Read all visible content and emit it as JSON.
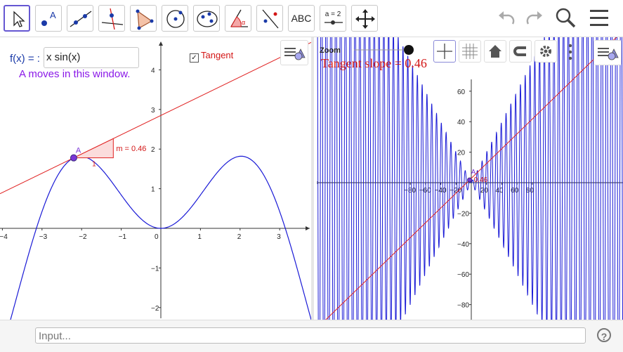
{
  "toolbar": {
    "tools": [
      "move-tool",
      "point-tool",
      "line-tool",
      "perpendicular-tool",
      "polygon-tool",
      "circle-tool",
      "conic-tool",
      "angle-tool",
      "reflect-tool",
      "text-tool",
      "slider-tool",
      "move-graphics-tool"
    ],
    "text_tool_label": "ABC",
    "slider_tool_label": "a = 2"
  },
  "algebra": {
    "fx_label": "f(x) = :",
    "fx_value": "x sin(x)",
    "caption": "A moves in this window."
  },
  "left_view": {
    "tangent_checkbox_label": "Tangent",
    "tangent_checked": true,
    "point_label": "A",
    "slope_label": "m = 0.46",
    "triangle_leg": "1",
    "x_ticks": [
      "−4",
      "−3",
      "−2",
      "−1",
      "0",
      "1",
      "2",
      "3"
    ],
    "y_ticks": [
      "4",
      "3",
      "2",
      "1",
      "−1",
      "−2"
    ]
  },
  "right_view": {
    "zoom_label": "Zoom",
    "zoom_value": 1.0,
    "slope_text": "Tangent slope = 0.46",
    "point_label": "A",
    "point_value_label": "0.46",
    "x_ticks": [
      "−80",
      "−60",
      "−40",
      "−20",
      "20",
      "40",
      "60",
      "80"
    ],
    "y_ticks": [
      "60",
      "40",
      "20",
      "−20",
      "−40",
      "−60",
      "−80"
    ]
  },
  "input_bar": {
    "placeholder": "Input..."
  },
  "colors": {
    "curve": "#1a1ad6",
    "tangent": "#e02020",
    "point": "#7a35d8",
    "accent": "#6557d2"
  }
}
